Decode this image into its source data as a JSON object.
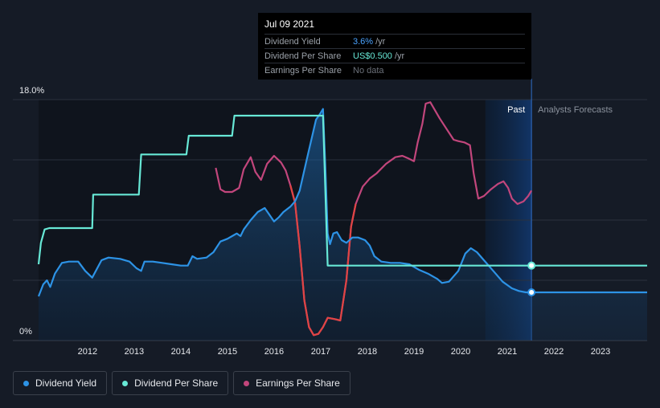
{
  "chart_data": {
    "type": "line",
    "title": "",
    "xlabel": "",
    "ylabel": "",
    "x_ticks": [
      "2012",
      "2013",
      "2014",
      "2015",
      "2016",
      "2017",
      "2018",
      "2019",
      "2020",
      "2021",
      "2022",
      "2023"
    ],
    "x_range": [
      2010.95,
      2024.0
    ],
    "y_ticks": [
      "0%",
      "18.0%"
    ],
    "ylim": [
      0,
      18.0
    ],
    "regions": {
      "past_label": "Past",
      "forecast_label": "Analysts Forecasts",
      "split_x": 2021.52,
      "highlight_start_x": 2020.53
    },
    "tooltip": {
      "date": "Jul 09 2021",
      "rows": [
        {
          "label": "Dividend Yield",
          "value": "3.6%",
          "unit": "/yr"
        },
        {
          "label": "Dividend Per Share",
          "value": "US$0.500",
          "unit": "/yr"
        },
        {
          "label": "Earnings Per Share",
          "value": "No data",
          "unit": ""
        }
      ]
    },
    "series": [
      {
        "name": "Dividend Yield",
        "color": "#2d93e6",
        "fill": true,
        "points": [
          [
            2010.95,
            3.3
          ],
          [
            2011.05,
            4.2
          ],
          [
            2011.13,
            4.5
          ],
          [
            2011.2,
            4.0
          ],
          [
            2011.3,
            5.0
          ],
          [
            2011.45,
            5.8
          ],
          [
            2011.6,
            5.9
          ],
          [
            2011.8,
            5.9
          ],
          [
            2011.95,
            5.2
          ],
          [
            2012.1,
            4.7
          ],
          [
            2012.3,
            6.0
          ],
          [
            2012.45,
            6.2
          ],
          [
            2012.7,
            6.1
          ],
          [
            2012.9,
            5.9
          ],
          [
            2013.05,
            5.4
          ],
          [
            2013.15,
            5.2
          ],
          [
            2013.22,
            5.9
          ],
          [
            2013.4,
            5.9
          ],
          [
            2013.6,
            5.8
          ],
          [
            2013.8,
            5.7
          ],
          [
            2014.0,
            5.6
          ],
          [
            2014.15,
            5.6
          ],
          [
            2014.25,
            6.3
          ],
          [
            2014.35,
            6.1
          ],
          [
            2014.55,
            6.2
          ],
          [
            2014.7,
            6.6
          ],
          [
            2014.85,
            7.4
          ],
          [
            2015.0,
            7.6
          ],
          [
            2015.1,
            7.8
          ],
          [
            2015.2,
            8.0
          ],
          [
            2015.28,
            7.8
          ],
          [
            2015.35,
            8.3
          ],
          [
            2015.5,
            9.0
          ],
          [
            2015.65,
            9.6
          ],
          [
            2015.8,
            9.9
          ],
          [
            2015.88,
            9.5
          ],
          [
            2016.0,
            8.9
          ],
          [
            2016.1,
            9.2
          ],
          [
            2016.2,
            9.6
          ],
          [
            2016.35,
            10.0
          ],
          [
            2016.45,
            10.4
          ],
          [
            2016.55,
            11.2
          ],
          [
            2016.7,
            13.5
          ],
          [
            2016.8,
            15.0
          ],
          [
            2016.9,
            16.5
          ],
          [
            2016.98,
            16.9
          ],
          [
            2017.05,
            17.3
          ],
          [
            2017.1,
            13.0
          ],
          [
            2017.15,
            8.0
          ],
          [
            2017.2,
            7.2
          ],
          [
            2017.27,
            8.0
          ],
          [
            2017.35,
            8.1
          ],
          [
            2017.45,
            7.5
          ],
          [
            2017.55,
            7.3
          ],
          [
            2017.68,
            7.7
          ],
          [
            2017.8,
            7.7
          ],
          [
            2017.95,
            7.5
          ],
          [
            2018.05,
            7.1
          ],
          [
            2018.15,
            6.3
          ],
          [
            2018.3,
            5.9
          ],
          [
            2018.5,
            5.8
          ],
          [
            2018.7,
            5.8
          ],
          [
            2018.9,
            5.7
          ],
          [
            2019.1,
            5.3
          ],
          [
            2019.3,
            5.0
          ],
          [
            2019.5,
            4.6
          ],
          [
            2019.6,
            4.3
          ],
          [
            2019.75,
            4.4
          ],
          [
            2019.95,
            5.2
          ],
          [
            2020.1,
            6.5
          ],
          [
            2020.22,
            6.9
          ],
          [
            2020.35,
            6.6
          ],
          [
            2020.5,
            6.0
          ],
          [
            2020.7,
            5.2
          ],
          [
            2020.9,
            4.4
          ],
          [
            2021.1,
            3.9
          ],
          [
            2021.25,
            3.7
          ],
          [
            2021.4,
            3.6
          ],
          [
            2021.52,
            3.6
          ],
          [
            2024.0,
            3.6
          ]
        ]
      },
      {
        "name": "Dividend Per Share",
        "color": "#67e8d6",
        "fill": false,
        "points": [
          [
            2010.95,
            5.7
          ],
          [
            2011.0,
            7.3
          ],
          [
            2011.08,
            8.3
          ],
          [
            2011.18,
            8.4
          ],
          [
            2012.1,
            8.4
          ],
          [
            2012.12,
            10.9
          ],
          [
            2013.1,
            10.9
          ],
          [
            2013.15,
            13.9
          ],
          [
            2014.12,
            13.9
          ],
          [
            2014.17,
            15.3
          ],
          [
            2015.1,
            15.3
          ],
          [
            2015.15,
            16.8
          ],
          [
            2017.05,
            16.8
          ],
          [
            2017.15,
            5.6
          ],
          [
            2021.52,
            5.6
          ],
          [
            2024.0,
            5.6
          ]
        ]
      },
      {
        "name": "Earnings Per Share",
        "color": "#c2467c",
        "fill": false,
        "points": [
          [
            2014.75,
            12.9
          ],
          [
            2014.85,
            11.3
          ],
          [
            2014.95,
            11.1
          ],
          [
            2015.1,
            11.1
          ],
          [
            2015.25,
            11.4
          ],
          [
            2015.35,
            12.8
          ],
          [
            2015.5,
            13.7
          ],
          [
            2015.6,
            12.6
          ],
          [
            2015.72,
            12.0
          ],
          [
            2015.85,
            13.2
          ],
          [
            2016.0,
            13.8
          ],
          [
            2016.15,
            13.3
          ],
          [
            2016.25,
            12.7
          ],
          [
            2016.35,
            11.6
          ],
          [
            2016.45,
            10.3
          ],
          [
            2016.55,
            7.0
          ],
          [
            2016.65,
            3.0
          ],
          [
            2016.75,
            1.0
          ],
          [
            2016.85,
            0.4
          ],
          [
            2016.95,
            0.5
          ],
          [
            2017.05,
            1.0
          ],
          [
            2017.15,
            1.7
          ],
          [
            2017.3,
            1.6
          ],
          [
            2017.42,
            1.5
          ],
          [
            2017.55,
            4.5
          ],
          [
            2017.65,
            8.5
          ],
          [
            2017.75,
            10.2
          ],
          [
            2017.9,
            11.5
          ],
          [
            2018.05,
            12.1
          ],
          [
            2018.2,
            12.5
          ],
          [
            2018.4,
            13.2
          ],
          [
            2018.6,
            13.7
          ],
          [
            2018.75,
            13.8
          ],
          [
            2018.88,
            13.6
          ],
          [
            2019.0,
            13.4
          ],
          [
            2019.08,
            14.8
          ],
          [
            2019.18,
            16.2
          ],
          [
            2019.25,
            17.7
          ],
          [
            2019.35,
            17.8
          ],
          [
            2019.45,
            17.2
          ],
          [
            2019.55,
            16.6
          ],
          [
            2019.7,
            15.8
          ],
          [
            2019.85,
            15.0
          ],
          [
            2019.95,
            14.9
          ],
          [
            2020.08,
            14.8
          ],
          [
            2020.2,
            14.6
          ],
          [
            2020.28,
            12.5
          ],
          [
            2020.38,
            10.6
          ],
          [
            2020.5,
            10.8
          ],
          [
            2020.65,
            11.3
          ],
          [
            2020.8,
            11.7
          ],
          [
            2020.92,
            11.9
          ],
          [
            2021.02,
            11.4
          ],
          [
            2021.1,
            10.6
          ],
          [
            2021.22,
            10.2
          ],
          [
            2021.35,
            10.4
          ],
          [
            2021.45,
            10.8
          ],
          [
            2021.52,
            11.2
          ]
        ]
      }
    ],
    "markers": [
      {
        "series": "Dividend Per Share",
        "x": 2021.52,
        "y": 5.6
      },
      {
        "series": "Dividend Yield",
        "x": 2021.52,
        "y": 3.6
      }
    ]
  },
  "legend": [
    {
      "label": "Dividend Yield",
      "color": "#2d93e6"
    },
    {
      "label": "Dividend Per Share",
      "color": "#67e8d6"
    },
    {
      "label": "Earnings Per Share",
      "color": "#c2467c"
    }
  ]
}
